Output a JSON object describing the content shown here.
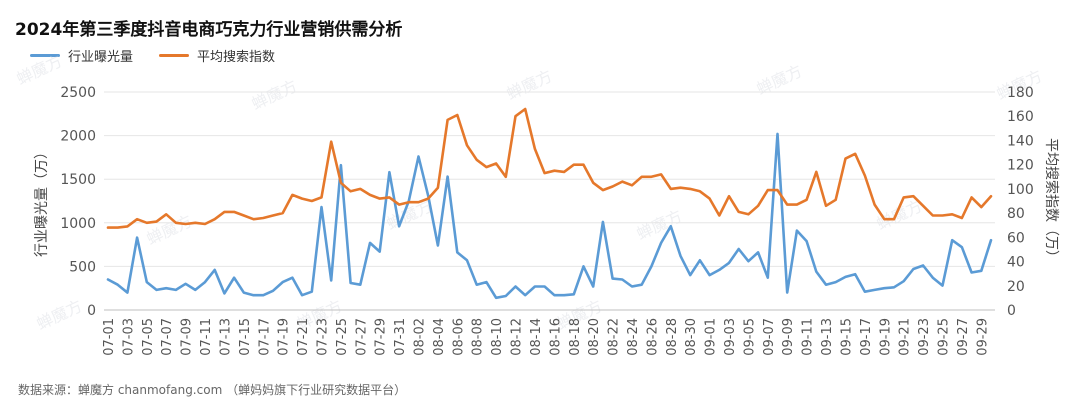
{
  "title": "2024年第三季度抖音电商巧克力行业营销供需分析",
  "source": "数据来源：蝉魔方 chanmofang.com （蝉妈妈旗下行业研究数据平台）",
  "watermark": "蝉魔方",
  "chart_data": {
    "type": "line",
    "x": [
      "07-01",
      "07-02",
      "07-03",
      "07-04",
      "07-05",
      "07-06",
      "07-07",
      "07-08",
      "07-09",
      "07-10",
      "07-11",
      "07-12",
      "07-13",
      "07-14",
      "07-15",
      "07-16",
      "07-17",
      "07-18",
      "07-19",
      "07-20",
      "07-21",
      "07-22",
      "07-23",
      "07-24",
      "07-25",
      "07-26",
      "07-27",
      "07-28",
      "07-29",
      "07-30",
      "07-31",
      "08-01",
      "08-02",
      "08-03",
      "08-04",
      "08-05",
      "08-06",
      "08-07",
      "08-08",
      "08-09",
      "08-10",
      "08-11",
      "08-12",
      "08-13",
      "08-14",
      "08-15",
      "08-16",
      "08-17",
      "08-18",
      "08-19",
      "08-20",
      "08-21",
      "08-22",
      "08-23",
      "08-24",
      "08-25",
      "08-26",
      "08-27",
      "08-28",
      "08-29",
      "08-30",
      "08-31",
      "09-01",
      "09-02",
      "09-03",
      "09-04",
      "09-05",
      "09-06",
      "09-07",
      "09-08",
      "09-09",
      "09-10",
      "09-11",
      "09-12",
      "09-13",
      "09-14",
      "09-15",
      "09-16",
      "09-17",
      "09-18",
      "09-19",
      "09-20",
      "09-21",
      "09-22",
      "09-23",
      "09-24",
      "09-25",
      "09-26",
      "09-27",
      "09-28",
      "09-29",
      "09-30"
    ],
    "x_tick_labels": [
      "07-01",
      "07-03",
      "07-05",
      "07-07",
      "07-09",
      "07-11",
      "07-13",
      "07-15",
      "07-17",
      "07-19",
      "07-21",
      "07-23",
      "07-25",
      "07-27",
      "07-29",
      "07-31",
      "08-02",
      "08-04",
      "08-06",
      "08-08",
      "08-10",
      "08-12",
      "08-14",
      "08-16",
      "08-18",
      "08-20",
      "08-22",
      "08-24",
      "08-26",
      "08-28",
      "08-30",
      "09-01",
      "09-03",
      "09-05",
      "09-07",
      "09-09",
      "09-11",
      "09-13",
      "09-15",
      "09-17",
      "09-19",
      "09-21",
      "09-23",
      "09-25",
      "09-27",
      "09-29"
    ],
    "series": [
      {
        "name": "行业曝光量",
        "axis": "left",
        "color": "#5b9bd5",
        "values": [
          350,
          290,
          200,
          830,
          320,
          230,
          250,
          230,
          300,
          230,
          320,
          460,
          190,
          370,
          200,
          170,
          170,
          220,
          320,
          370,
          170,
          210,
          1180,
          340,
          1660,
          310,
          290,
          770,
          670,
          1580,
          960,
          1250,
          1760,
          1310,
          740,
          1530,
          660,
          570,
          290,
          320,
          140,
          160,
          270,
          170,
          270,
          270,
          170,
          170,
          180,
          500,
          270,
          1010,
          360,
          350,
          270,
          290,
          500,
          770,
          960,
          620,
          400,
          570,
          400,
          460,
          540,
          700,
          560,
          660,
          370,
          2020,
          200,
          910,
          790,
          440,
          290,
          320,
          380,
          410,
          210,
          230,
          250,
          260,
          330,
          470,
          510,
          370,
          280,
          800,
          720,
          430,
          450,
          800
        ]
      },
      {
        "name": "平均搜索指数",
        "axis": "right",
        "color": "#e5782b",
        "values": [
          68,
          68,
          69,
          75,
          72,
          73,
          79,
          72,
          71,
          72,
          71,
          75,
          81,
          81,
          78,
          75,
          76,
          78,
          80,
          95,
          92,
          90,
          93,
          139,
          105,
          98,
          100,
          95,
          92,
          93,
          87,
          89,
          89,
          92,
          101,
          157,
          161,
          136,
          124,
          118,
          121,
          110,
          160,
          166,
          133,
          113,
          115,
          114,
          120,
          120,
          105,
          99,
          102,
          106,
          103,
          110,
          110,
          112,
          100,
          101,
          100,
          98,
          92,
          78,
          94,
          81,
          79,
          86,
          99,
          99,
          87,
          87,
          91,
          114,
          86,
          91,
          125,
          129,
          111,
          87,
          75,
          75,
          93,
          94,
          86,
          78,
          78,
          79,
          76,
          93,
          85,
          94
        ]
      }
    ],
    "yleft": {
      "label": "行业曝光量（万）",
      "min": 0,
      "max": 2500,
      "ticks": [
        0,
        500,
        1000,
        1500,
        2000,
        2500
      ]
    },
    "yright": {
      "label": "平均搜索指数（万）",
      "min": 0,
      "max": 180,
      "ticks": [
        0,
        20,
        40,
        60,
        80,
        100,
        120,
        140,
        160,
        180
      ]
    },
    "grid": true,
    "legend": "top-left"
  }
}
